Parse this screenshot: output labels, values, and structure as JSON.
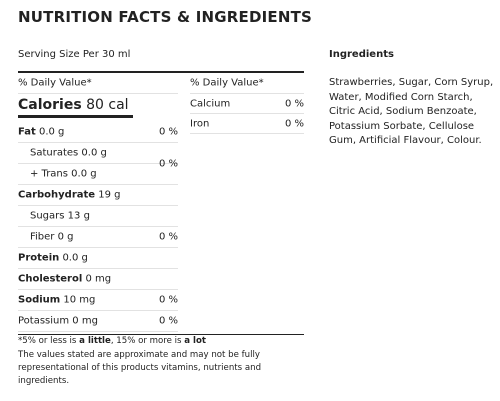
{
  "header": {
    "title": "NUTRITION FACTS & INGREDIENTS"
  },
  "serving": "Serving Size Per 30 ml",
  "left": {
    "dv_header": "% Daily Value*",
    "calories": {
      "name": "Calories",
      "amount": "80 cal"
    },
    "rows": [
      {
        "name": "Fat",
        "amount": "0.0 g",
        "dv": "0 %"
      },
      {
        "sub": [
          "Saturates 0.0 g",
          "+ Trans 0.0 g"
        ],
        "dv": "0 %"
      },
      {
        "name": "Carbohydrate",
        "amount": "19 g"
      },
      {
        "text": "Sugars 13 g"
      },
      {
        "text": "Fiber 0 g",
        "dv": "0 %"
      },
      {
        "name": "Protein",
        "amount": "0.0 g"
      },
      {
        "name": "Cholesterol",
        "amount": "0 mg"
      },
      {
        "name": "Sodium",
        "amount": "10 mg",
        "dv": "0 %"
      },
      {
        "text": "Potassium 0 mg",
        "dv": "0 %"
      }
    ]
  },
  "right": {
    "dv_header": "% Daily Value*",
    "rows": [
      {
        "name": "Calcium",
        "dv": "0 %"
      },
      {
        "name": "Iron",
        "dv": "0 %"
      }
    ]
  },
  "footnote": {
    "parts": [
      {
        "text": "*5% or less is "
      },
      {
        "text": "a little",
        "bold": true
      },
      {
        "text": ", 15% or more is "
      },
      {
        "text": "a lot",
        "bold": true
      }
    ],
    "note": "The values stated are approximate and may not be fully representational of this products vitamins, nutrients and ingredients."
  },
  "ingredients": {
    "heading": "Ingredients",
    "text": "Strawberries, Sugar, Corn Syrup, Water, Modified Corn Starch, Citric Acid, Sodium Benzoate, Potassium Sorbate, Cellulose Gum, Artificial Flavour, Colour."
  }
}
